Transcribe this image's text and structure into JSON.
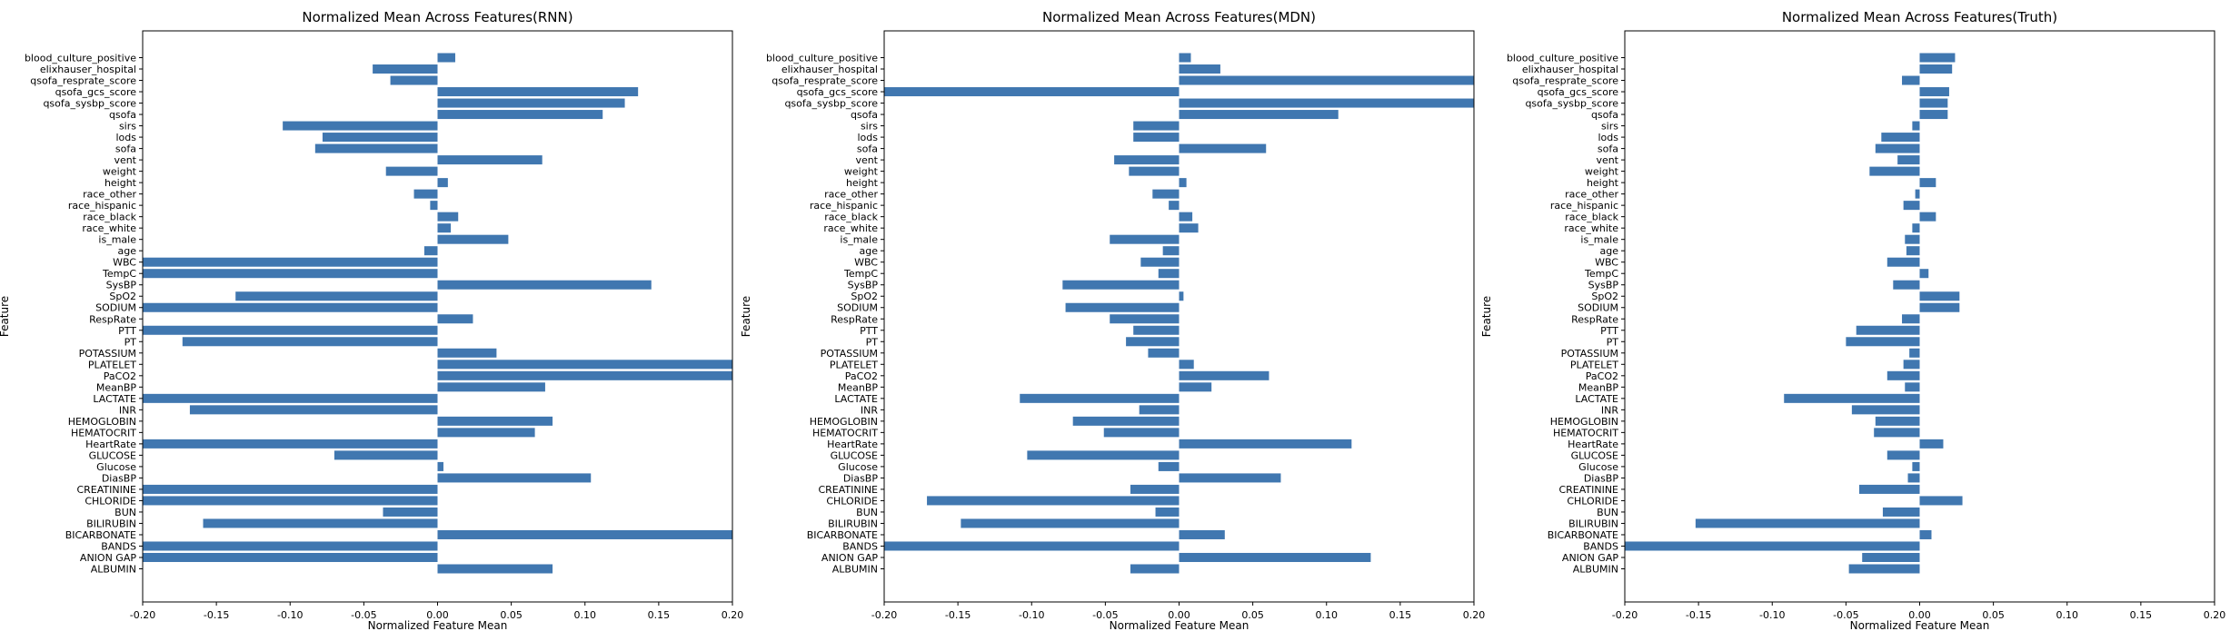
{
  "style": {
    "bar_color": "#4077b0",
    "axis_color": "#000000",
    "background": "#ffffff"
  },
  "chart_data": [
    {
      "type": "bar",
      "orientation": "horizontal",
      "title": "Normalized Mean Across Features(RNN)",
      "xlabel": "Normalized Feature Mean",
      "ylabel": "Feature",
      "xlim": [
        -0.2,
        0.2
      ],
      "xticks": [
        "-0.20",
        "-0.15",
        "-0.10",
        "-0.05",
        "0.00",
        "0.05",
        "0.10",
        "0.15",
        "0.20"
      ],
      "grid": false,
      "categories": [
        "blood_culture_positive",
        "elixhauser_hospital",
        "qsofa_resprate_score",
        "qsofa_gcs_score",
        "qsofa_sysbp_score",
        "qsofa",
        "sirs",
        "lods",
        "sofa",
        "vent",
        "weight",
        "height",
        "race_other",
        "race_hispanic",
        "race_black",
        "race_white",
        "is_male",
        "age",
        "WBC",
        "TempC",
        "SysBP",
        "SpO2",
        "SODIUM",
        "RespRate",
        "PTT",
        "PT",
        "POTASSIUM",
        "PLATELET",
        "PaCO2",
        "MeanBP",
        "LACTATE",
        "INR",
        "HEMOGLOBIN",
        "HEMATOCRIT",
        "HeartRate",
        "GLUCOSE",
        "Glucose",
        "DiasBP",
        "CREATININE",
        "CHLORIDE",
        "BUN",
        "BILIRUBIN",
        "BICARBONATE",
        "BANDS",
        "ANION GAP",
        "ALBUMIN"
      ],
      "values": [
        0.012,
        -0.044,
        -0.032,
        0.136,
        0.127,
        0.112,
        -0.105,
        -0.078,
        -0.083,
        0.071,
        -0.035,
        0.007,
        -0.016,
        -0.005,
        0.014,
        0.009,
        0.048,
        -0.009,
        -0.2,
        -0.2,
        0.145,
        -0.137,
        -0.2,
        0.024,
        -0.2,
        -0.173,
        0.04,
        0.2,
        0.2,
        0.073,
        -0.2,
        -0.168,
        0.078,
        0.066,
        -0.2,
        -0.07,
        0.004,
        0.104,
        -0.2,
        -0.2,
        -0.037,
        -0.159,
        0.2,
        -0.2,
        -0.2,
        0.078
      ]
    },
    {
      "type": "bar",
      "orientation": "horizontal",
      "title": "Normalized Mean Across Features(MDN)",
      "xlabel": "Normalized Feature Mean",
      "ylabel": "Feature",
      "xlim": [
        -0.2,
        0.2
      ],
      "xticks": [
        "-0.20",
        "-0.15",
        "-0.10",
        "-0.05",
        "0.00",
        "0.05",
        "0.10",
        "0.15",
        "0.20"
      ],
      "grid": false,
      "categories": [
        "blood_culture_positive",
        "elixhauser_hospital",
        "qsofa_resprate_score",
        "qsofa_gcs_score",
        "qsofa_sysbp_score",
        "qsofa",
        "sirs",
        "lods",
        "sofa",
        "vent",
        "weight",
        "height",
        "race_other",
        "race_hispanic",
        "race_black",
        "race_white",
        "is_male",
        "age",
        "WBC",
        "TempC",
        "SysBP",
        "SpO2",
        "SODIUM",
        "RespRate",
        "PTT",
        "PT",
        "POTASSIUM",
        "PLATELET",
        "PaCO2",
        "MeanBP",
        "LACTATE",
        "INR",
        "HEMOGLOBIN",
        "HEMATOCRIT",
        "HeartRate",
        "GLUCOSE",
        "Glucose",
        "DiasBP",
        "CREATININE",
        "CHLORIDE",
        "BUN",
        "BILIRUBIN",
        "BICARBONATE",
        "BANDS",
        "ANION GAP",
        "ALBUMIN"
      ],
      "values": [
        0.008,
        0.028,
        0.2,
        -0.2,
        0.2,
        0.108,
        -0.031,
        -0.031,
        0.059,
        -0.044,
        -0.034,
        0.005,
        -0.018,
        -0.007,
        0.009,
        0.013,
        -0.047,
        -0.011,
        -0.026,
        -0.014,
        -0.079,
        0.003,
        -0.077,
        -0.047,
        -0.031,
        -0.036,
        -0.021,
        0.01,
        0.061,
        0.022,
        -0.108,
        -0.027,
        -0.072,
        -0.051,
        0.117,
        -0.103,
        -0.014,
        0.069,
        -0.033,
        -0.171,
        -0.016,
        -0.148,
        0.031,
        -0.2,
        0.13,
        -0.033
      ]
    },
    {
      "type": "bar",
      "orientation": "horizontal",
      "title": "Normalized Mean Across Features(Truth)",
      "xlabel": "Normalized Feature Mean",
      "ylabel": "Feature",
      "xlim": [
        -0.2,
        0.2
      ],
      "xticks": [
        "-0.20",
        "-0.15",
        "-0.10",
        "-0.05",
        "0.00",
        "0.05",
        "0.10",
        "0.15",
        "0.20"
      ],
      "grid": false,
      "categories": [
        "blood_culture_positive",
        "elixhauser_hospital",
        "qsofa_resprate_score",
        "qsofa_gcs_score",
        "qsofa_sysbp_score",
        "qsofa",
        "sirs",
        "lods",
        "sofa",
        "vent",
        "weight",
        "height",
        "race_other",
        "race_hispanic",
        "race_black",
        "race_white",
        "is_male",
        "age",
        "WBC",
        "TempC",
        "SysBP",
        "SpO2",
        "SODIUM",
        "RespRate",
        "PTT",
        "PT",
        "POTASSIUM",
        "PLATELET",
        "PaCO2",
        "MeanBP",
        "LACTATE",
        "INR",
        "HEMOGLOBIN",
        "HEMATOCRIT",
        "HeartRate",
        "GLUCOSE",
        "Glucose",
        "DiasBP",
        "CREATININE",
        "CHLORIDE",
        "BUN",
        "BILIRUBIN",
        "BICARBONATE",
        "BANDS",
        "ANION GAP",
        "ALBUMIN"
      ],
      "values": [
        0.024,
        0.022,
        -0.012,
        0.02,
        0.019,
        0.019,
        -0.005,
        -0.026,
        -0.03,
        -0.015,
        -0.034,
        0.011,
        -0.003,
        -0.011,
        0.011,
        -0.005,
        -0.01,
        -0.009,
        -0.022,
        0.006,
        -0.018,
        0.027,
        0.027,
        -0.012,
        -0.043,
        -0.05,
        -0.007,
        -0.011,
        -0.022,
        -0.01,
        -0.092,
        -0.046,
        -0.03,
        -0.031,
        0.016,
        -0.022,
        -0.005,
        -0.008,
        -0.041,
        0.029,
        -0.025,
        -0.152,
        0.008,
        -0.2,
        -0.039,
        -0.048
      ]
    }
  ]
}
